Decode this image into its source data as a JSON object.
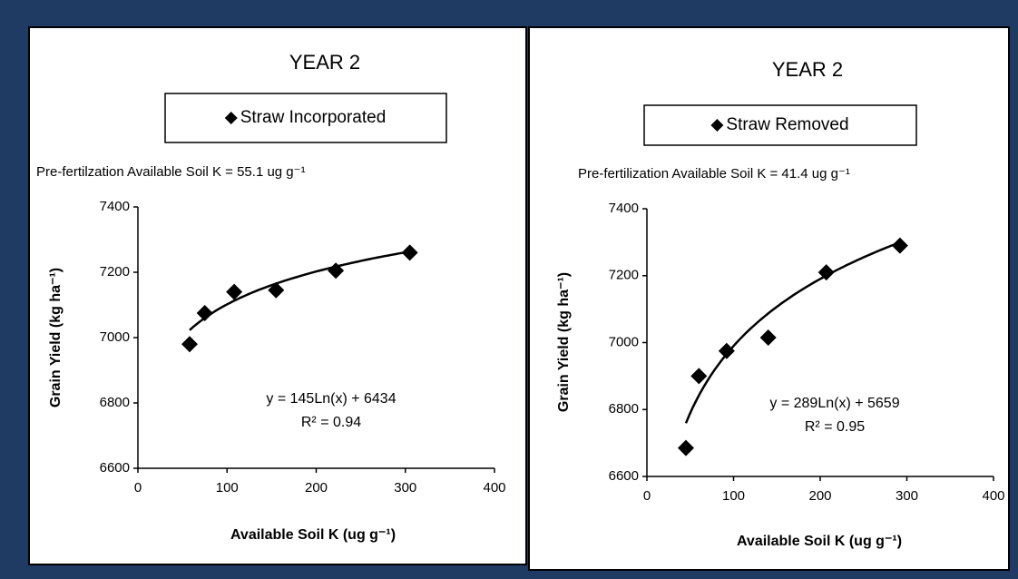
{
  "chart_data": [
    {
      "type": "scatter",
      "title": "YEAR 2",
      "subtitle": "Pre-fertilzation Available Soil K = 55.1 ug g⁻¹",
      "xlabel": "Available Soil K (ug g⁻¹)",
      "ylabel": "Grain Yield (kg ha⁻¹)",
      "xlim": [
        0,
        400
      ],
      "xticks": [
        0,
        100,
        200,
        300,
        400
      ],
      "ylim": [
        6600,
        7400
      ],
      "yticks": [
        6600,
        6800,
        7000,
        7200,
        7400
      ],
      "series": [
        {
          "name": "Straw Incorporated",
          "color": "#000000",
          "x": [
            58,
            75,
            108,
            155,
            222,
            305
          ],
          "values": [
            6980,
            7075,
            7140,
            7145,
            7205,
            7260
          ]
        }
      ],
      "trendline": {
        "type": "log",
        "slope": 145,
        "intercept": 6434
      },
      "annotations": [
        "y = 145Ln(x) + 6434",
        "R² = 0.94"
      ]
    },
    {
      "type": "scatter",
      "title": "YEAR 2",
      "subtitle": "Pre-fertilization Available Soil K = 41.4 ug g⁻¹",
      "xlabel": "Available Soil K (ug g⁻¹)",
      "ylabel": "Grain Yield (kg ha⁻¹)",
      "xlim": [
        0,
        400
      ],
      "xticks": [
        0,
        100,
        200,
        300,
        400
      ],
      "ylim": [
        6600,
        7400
      ],
      "yticks": [
        6600,
        6800,
        7000,
        7200,
        7400
      ],
      "series": [
        {
          "name": "Straw Removed",
          "color": "#000000",
          "x": [
            45,
            60,
            92,
            140,
            207,
            292
          ],
          "values": [
            6685,
            6900,
            6975,
            7015,
            7210,
            7290
          ]
        }
      ],
      "trendline": {
        "type": "log",
        "slope": 289,
        "intercept": 5659
      },
      "annotations": [
        "y = 289Ln(x) + 5659",
        "R² = 0.95"
      ]
    }
  ]
}
